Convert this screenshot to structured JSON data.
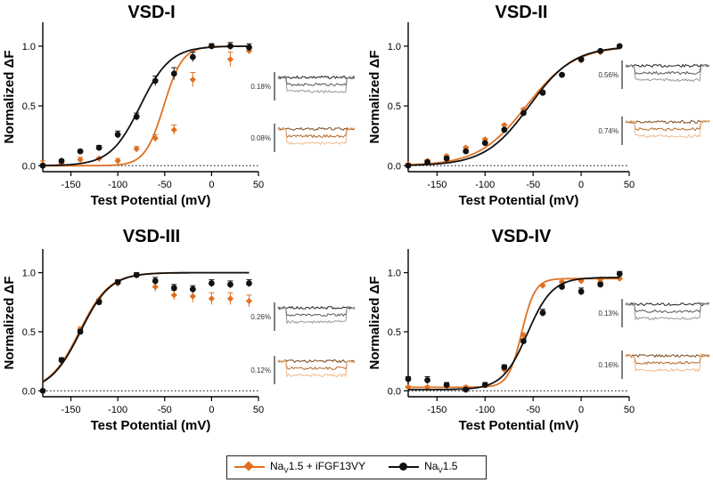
{
  "colors": {
    "orange": "#e07020",
    "black": "#111111"
  },
  "legend": {
    "s1_main": "Na",
    "s1_sub": "V",
    "s1_rest": "1.5 + iFGF13VY",
    "s2_main": "Na",
    "s2_sub": "V",
    "s2_rest": "1.5"
  },
  "chart_data": [
    {
      "type": "scatter",
      "title": "VSD-I",
      "xlabel": "Test Potential (mV)",
      "ylabel": "Normalized ΔF",
      "xlim": [
        -180,
        50
      ],
      "ylim": [
        -0.05,
        1.2
      ],
      "xticks": [
        -150,
        -100,
        -50,
        0,
        50
      ],
      "yticks": [
        0.0,
        0.5,
        1.0
      ],
      "fit_x_max": 40,
      "series": [
        {
          "name": "NaV1.5 + iFGF13VY",
          "color": "orange",
          "marker": "diamond",
          "x": [
            -180,
            -160,
            -140,
            -120,
            -100,
            -80,
            -60,
            -40,
            -20,
            0,
            20,
            40
          ],
          "y": [
            0.01,
            0.02,
            0.05,
            0.06,
            0.04,
            0.14,
            0.23,
            0.3,
            0.72,
            1.0,
            0.89,
            0.96
          ],
          "err": [
            0.03,
            0.01,
            0.02,
            0.01,
            0.02,
            0.02,
            0.03,
            0.04,
            0.06,
            0.02,
            0.06,
            0.02
          ],
          "fit": {
            "v50": -51,
            "k": 10
          }
        },
        {
          "name": "NaV1.5",
          "color": "black",
          "marker": "circle",
          "x": [
            -180,
            -160,
            -140,
            -120,
            -100,
            -80,
            -60,
            -40,
            -20,
            0,
            20,
            40
          ],
          "y": [
            0.0,
            0.04,
            0.12,
            0.15,
            0.26,
            0.41,
            0.71,
            0.77,
            0.91,
            1.0,
            1.0,
            0.99
          ],
          "err": [
            0.01,
            0.01,
            0.01,
            0.02,
            0.03,
            0.03,
            0.04,
            0.05,
            0.04,
            0.02,
            0.03,
            0.03
          ],
          "fit": {
            "v50": -76,
            "k": 16
          }
        }
      ],
      "scalebars": [
        "0.18%",
        "0.08%"
      ]
    },
    {
      "type": "scatter",
      "title": "VSD-II",
      "xlabel": "Test Potential (mV)",
      "ylabel": "Normalized ΔF",
      "xlim": [
        -180,
        50
      ],
      "ylim": [
        -0.05,
        1.2
      ],
      "xticks": [
        -150,
        -100,
        -50,
        0,
        50
      ],
      "yticks": [
        0.0,
        0.5,
        1.0
      ],
      "fit_x_max": 40,
      "series": [
        {
          "name": "NaV1.5 + iFGF13VY",
          "color": "orange",
          "marker": "diamond",
          "x": [
            -180,
            -160,
            -140,
            -120,
            -100,
            -80,
            -60,
            -40,
            -20,
            0,
            20,
            40
          ],
          "y": [
            0.01,
            0.04,
            0.08,
            0.15,
            0.22,
            0.34,
            0.47,
            0.62,
            0.76,
            0.88,
            0.95,
            1.0
          ],
          "err": [
            0.01,
            0.01,
            0.01,
            0.01,
            0.01,
            0.01,
            0.01,
            0.01,
            0.01,
            0.01,
            0.01,
            0.01
          ],
          "fit": {
            "v50": -57,
            "k": 25
          }
        },
        {
          "name": "NaV1.5",
          "color": "black",
          "marker": "circle",
          "x": [
            -180,
            -160,
            -140,
            -120,
            -100,
            -80,
            -60,
            -40,
            -20,
            0,
            20,
            40
          ],
          "y": [
            0.0,
            0.03,
            0.06,
            0.12,
            0.19,
            0.3,
            0.44,
            0.61,
            0.76,
            0.89,
            0.96,
            1.0
          ],
          "err": [
            0.01,
            0.01,
            0.01,
            0.01,
            0.01,
            0.01,
            0.01,
            0.01,
            0.01,
            0.01,
            0.01,
            0.01
          ],
          "fit": {
            "v50": -54,
            "k": 23
          }
        }
      ],
      "scalebars": [
        "0.56%",
        "0.74%"
      ]
    },
    {
      "type": "scatter",
      "title": "VSD-III",
      "xlabel": "Test Potential (mV)",
      "ylabel": "Normalized ΔF",
      "xlim": [
        -180,
        50
      ],
      "ylim": [
        -0.05,
        1.2
      ],
      "xticks": [
        -150,
        -100,
        -50,
        0,
        50
      ],
      "yticks": [
        0.0,
        0.5,
        1.0
      ],
      "fit_x_max": 40,
      "series": [
        {
          "name": "NaV1.5 + iFGF13VY",
          "color": "orange",
          "marker": "diamond",
          "x": [
            -180,
            -160,
            -140,
            -120,
            -100,
            -80,
            -60,
            -40,
            -20,
            0,
            20,
            40
          ],
          "y": [
            0.0,
            0.26,
            0.52,
            0.76,
            0.91,
            0.98,
            0.88,
            0.81,
            0.8,
            0.78,
            0.78,
            0.76
          ],
          "err": [
            0.01,
            0.02,
            0.02,
            0.02,
            0.02,
            0.02,
            0.04,
            0.04,
            0.05,
            0.05,
            0.05,
            0.05
          ],
          "fit": {
            "v50": -141,
            "k": 16
          }
        },
        {
          "name": "NaV1.5",
          "color": "black",
          "marker": "circle",
          "x": [
            -180,
            -160,
            -140,
            -120,
            -100,
            -80,
            -60,
            -40,
            -20,
            0,
            20,
            40
          ],
          "y": [
            0.0,
            0.26,
            0.5,
            0.75,
            0.92,
            0.98,
            0.93,
            0.87,
            0.86,
            0.91,
            0.9,
            0.91
          ],
          "err": [
            0.01,
            0.02,
            0.02,
            0.02,
            0.02,
            0.02,
            0.03,
            0.03,
            0.03,
            0.03,
            0.03,
            0.03
          ],
          "fit": {
            "v50": -140,
            "k": 16
          }
        }
      ],
      "scalebars": [
        "0.26%",
        "0.12%"
      ]
    },
    {
      "type": "scatter",
      "title": "VSD-IV",
      "xlabel": "Test Potential (mV)",
      "ylabel": "Normalized ΔF",
      "xlim": [
        -180,
        50
      ],
      "ylim": [
        -0.05,
        1.2
      ],
      "xticks": [
        -150,
        -100,
        -50,
        0,
        50
      ],
      "yticks": [
        0.0,
        0.5,
        1.0
      ],
      "fit_x_max": 40,
      "series": [
        {
          "name": "NaV1.5 + iFGF13VY",
          "color": "orange",
          "marker": "diamond",
          "x": [
            -180,
            -160,
            -140,
            -120,
            -100,
            -80,
            -60,
            -40,
            -20,
            0,
            20,
            40
          ],
          "y": [
            0.03,
            0.03,
            0.04,
            0.03,
            0.05,
            0.18,
            0.47,
            0.89,
            0.92,
            0.93,
            0.94,
            0.95
          ],
          "err": [
            0.01,
            0.01,
            0.01,
            0.01,
            0.01,
            0.01,
            0.02,
            0.01,
            0.01,
            0.01,
            0.01,
            0.01
          ],
          "fit": {
            "v50": -62,
            "k": 7,
            "base": 0.03,
            "top": 0.95
          }
        },
        {
          "name": "NaV1.5",
          "color": "black",
          "marker": "circle",
          "x": [
            -180,
            -160,
            -140,
            -120,
            -100,
            -80,
            -60,
            -40,
            -20,
            0,
            20,
            40
          ],
          "y": [
            0.1,
            0.09,
            0.05,
            0.01,
            0.05,
            0.2,
            0.42,
            0.66,
            0.88,
            0.84,
            0.9,
            0.99
          ],
          "err": [
            0.02,
            0.03,
            0.02,
            0.01,
            0.02,
            0.02,
            0.02,
            0.03,
            0.02,
            0.03,
            0.02,
            0.02
          ],
          "fit": {
            "v50": -56,
            "k": 13,
            "base": 0.01,
            "top": 0.96
          }
        }
      ],
      "scalebars": [
        "0.13%",
        "0.16%"
      ]
    }
  ]
}
